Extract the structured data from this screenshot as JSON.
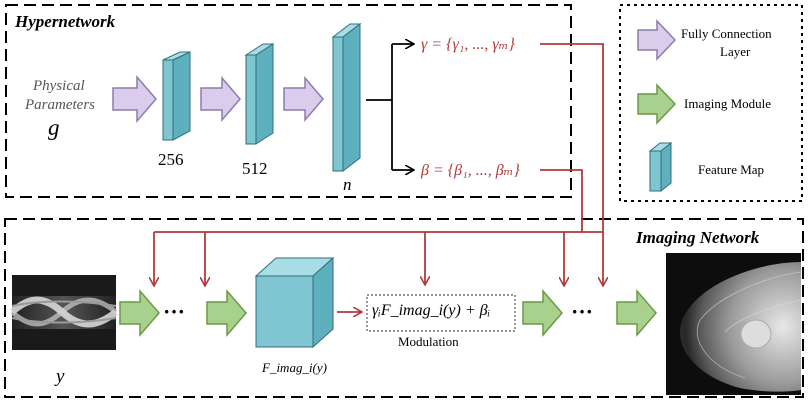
{
  "hypernetwork": {
    "title": "Hypernetwork",
    "input_label_line1": "Physical",
    "input_label_line2": "Parameters",
    "input_symbol": "g",
    "layer_sizes": [
      "256",
      "512",
      "n"
    ],
    "gamma_label": "γ = {γ₁, ..., γₘ}",
    "beta_label": "β = {β₁, ..., βₘ}"
  },
  "legend": {
    "items": [
      {
        "icon": "purple-arrow-icon",
        "label_line1": "Fully Connection",
        "label_line2": "Layer"
      },
      {
        "icon": "green-arrow-icon",
        "label_line1": "Imaging Module",
        "label_line2": ""
      },
      {
        "icon": "feature-map-icon",
        "label_line1": "Feature Map",
        "label_line2": ""
      }
    ]
  },
  "imaging_network": {
    "title": "Imaging Network",
    "input_symbol": "y",
    "dots": "···",
    "feature_label": "F_imag_i(y)",
    "modulation_formula": "γᵢF_imag_i(y) + βᵢ",
    "modulation_label": "Modulation"
  },
  "colors": {
    "purple_arrow": "#d9cdeb",
    "purple_arrow_stroke": "#8e7aae",
    "green_arrow": "#a9d18e",
    "green_arrow_stroke": "#6b9a45",
    "feature_map_front": "#7fc6d2",
    "feature_map_side": "#5fb0bf",
    "feature_map_top": "#a8dde6",
    "modulation_red": "#b23a3a"
  }
}
